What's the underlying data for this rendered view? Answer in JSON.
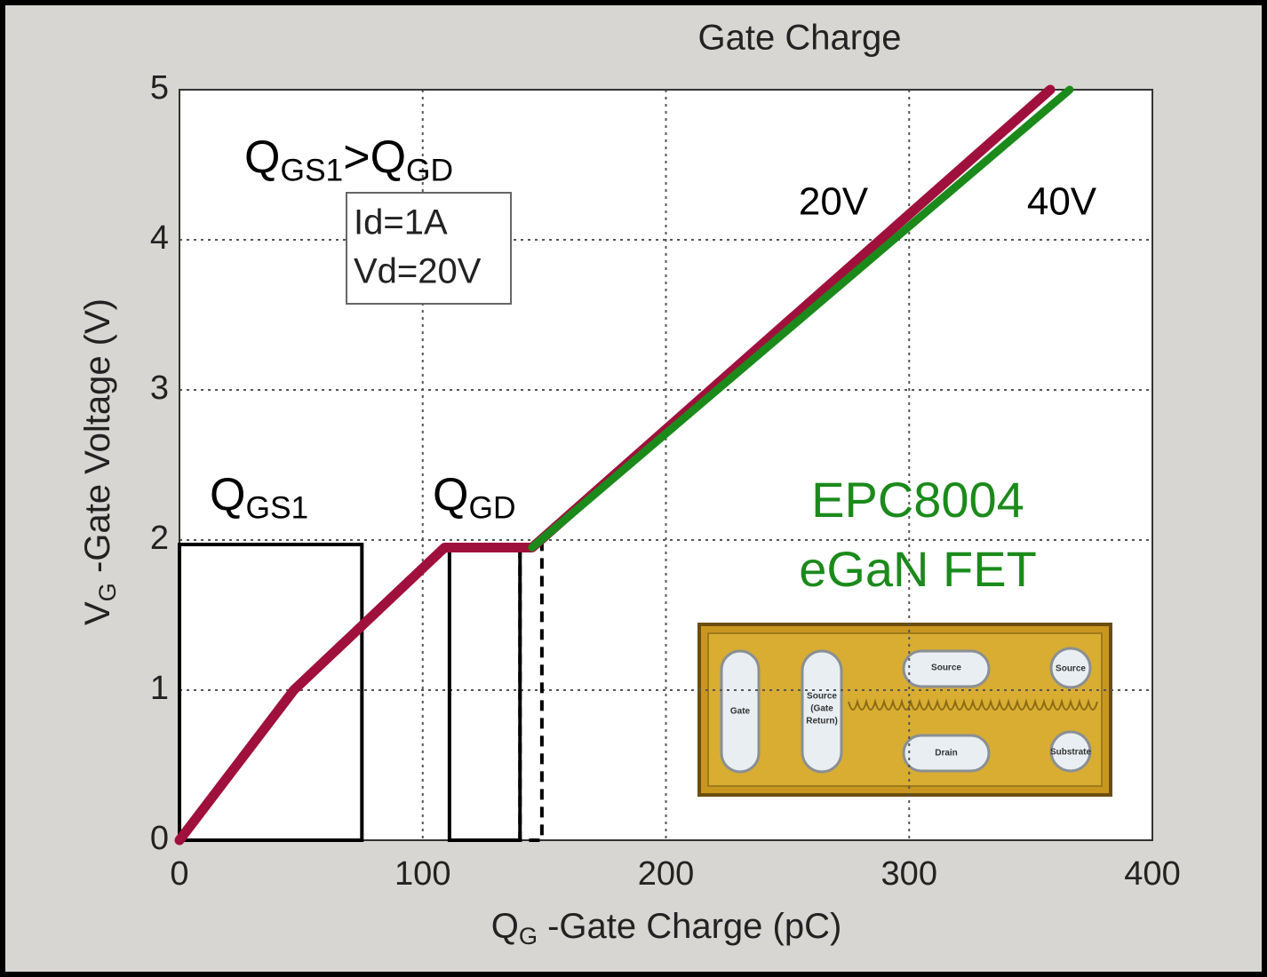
{
  "chart_data": {
    "type": "line",
    "title": "Gate Charge",
    "x_label": [
      {
        "text": "Q"
      },
      {
        "text": "G",
        "sub": true
      },
      {
        "text": " -Gate Charge (pC)"
      }
    ],
    "y_label": [
      {
        "text": "V"
      },
      {
        "text": "G",
        "sub": true
      },
      {
        "text": " -Gate Voltage (V)"
      }
    ],
    "xlim": [
      0,
      400
    ],
    "ylim": [
      0,
      5
    ],
    "xticks": [
      0,
      100,
      200,
      300,
      400
    ],
    "yticks": [
      0,
      1,
      2,
      3,
      4,
      5
    ],
    "grid": true,
    "series": [
      {
        "name": "20V",
        "color": "#a0103c",
        "x": [
          0,
          47,
          109,
          145,
          358
        ],
        "values": [
          0,
          1,
          1.95,
          1.95,
          5
        ]
      },
      {
        "name": "40V",
        "color": "#1b8a1b",
        "x": [
          145,
          366
        ],
        "values": [
          1.95,
          5
        ]
      }
    ],
    "regions": [
      {
        "x": [
          0,
          75
        ],
        "y": [
          0,
          1.97
        ],
        "style": "solid",
        "label": [
          {
            "text": "Q"
          },
          {
            "text": "GS1",
            "sub": true
          }
        ]
      },
      {
        "x": [
          111,
          140
        ],
        "y": [
          0,
          1.97
        ],
        "style": "solid",
        "label": [
          {
            "text": "Q"
          },
          {
            "text": "GD",
            "sub": true
          }
        ]
      },
      {
        "x": [
          140,
          149
        ],
        "y": [
          0,
          1.97
        ],
        "style": "dashed"
      }
    ],
    "comparison": [
      {
        "text": "Q"
      },
      {
        "text": "GS1",
        "sub": true
      },
      {
        "text": ">Q"
      },
      {
        "text": "GD",
        "sub": true
      }
    ],
    "conditions": [
      "Id=1A",
      "Vd=20V"
    ],
    "device": [
      "EPC8004",
      "eGaN FET"
    ],
    "die_labels": [
      "Gate",
      "Source",
      "(Gate",
      "Return)",
      "Source",
      "Source",
      "Drain",
      "Substrate"
    ]
  }
}
